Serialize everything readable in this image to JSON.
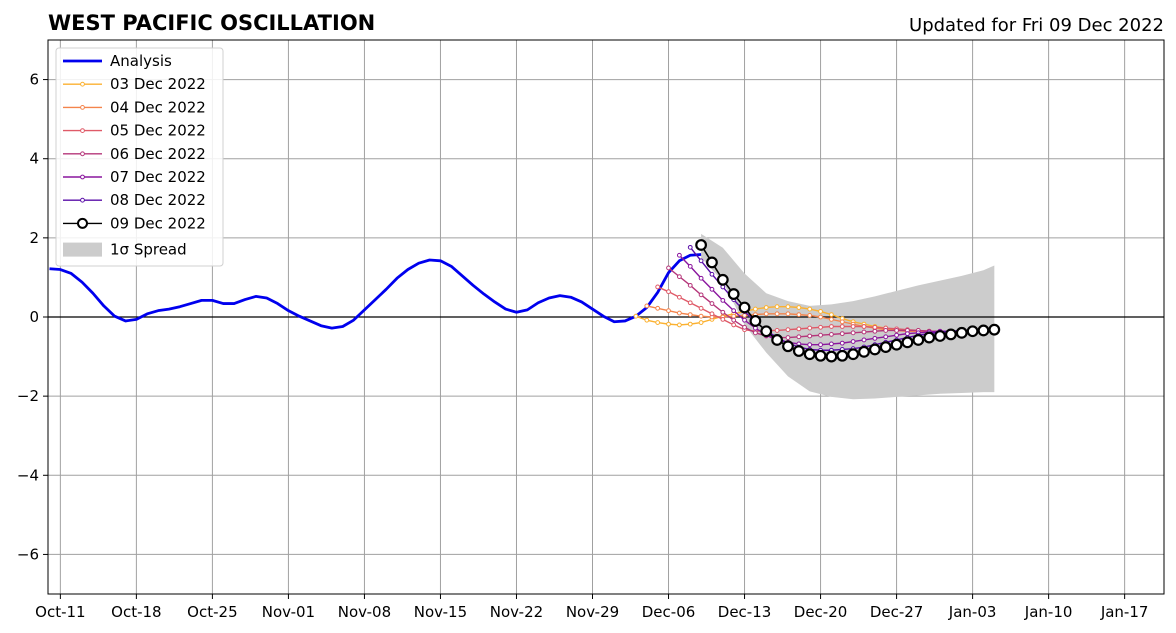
{
  "chart_data": {
    "type": "line",
    "title": "WEST PACIFIC OSCILLATION",
    "subtitle": "Updated for Fri 09 Dec 2022",
    "xlabel": "",
    "ylabel": "",
    "x_ticks": [
      "Oct-11",
      "Oct-18",
      "Oct-25",
      "Nov-01",
      "Nov-08",
      "Nov-15",
      "Nov-22",
      "Nov-29",
      "Dec-06",
      "Dec-13",
      "Dec-20",
      "Dec-27",
      "Jan-03",
      "Jan-10",
      "Jan-17"
    ],
    "y_ticks": [
      "6",
      "4",
      "2",
      "0",
      "−2",
      "−4",
      "−6"
    ],
    "ylim": [
      -7,
      7
    ],
    "grid": true,
    "legend_position": "top-left",
    "series": [
      {
        "name": "Analysis",
        "color": "#0000ee",
        "values": [
          [
            0,
            1.22
          ],
          [
            1,
            1.2
          ],
          [
            2,
            1.1
          ],
          [
            3,
            0.88
          ],
          [
            4,
            0.6
          ],
          [
            5,
            0.28
          ],
          [
            6,
            0.02
          ],
          [
            7,
            -0.1
          ],
          [
            8,
            -0.06
          ],
          [
            9,
            0.08
          ],
          [
            10,
            0.16
          ],
          [
            11,
            0.2
          ],
          [
            12,
            0.26
          ],
          [
            13,
            0.34
          ],
          [
            14,
            0.42
          ],
          [
            15,
            0.42
          ],
          [
            16,
            0.34
          ],
          [
            17,
            0.34
          ],
          [
            18,
            0.44
          ],
          [
            19,
            0.52
          ],
          [
            20,
            0.48
          ],
          [
            21,
            0.34
          ],
          [
            22,
            0.16
          ],
          [
            23,
            0.02
          ],
          [
            24,
            -0.1
          ],
          [
            25,
            -0.22
          ],
          [
            26,
            -0.28
          ],
          [
            27,
            -0.24
          ],
          [
            28,
            -0.08
          ],
          [
            29,
            0.18
          ],
          [
            30,
            0.44
          ],
          [
            31,
            0.7
          ],
          [
            32,
            0.98
          ],
          [
            33,
            1.2
          ],
          [
            34,
            1.36
          ],
          [
            35,
            1.44
          ],
          [
            36,
            1.42
          ],
          [
            37,
            1.28
          ],
          [
            38,
            1.04
          ],
          [
            39,
            0.8
          ],
          [
            40,
            0.58
          ],
          [
            41,
            0.38
          ],
          [
            42,
            0.2
          ],
          [
            43,
            0.12
          ],
          [
            44,
            0.18
          ],
          [
            45,
            0.36
          ],
          [
            46,
            0.48
          ],
          [
            47,
            0.54
          ],
          [
            48,
            0.5
          ],
          [
            49,
            0.38
          ],
          [
            50,
            0.2
          ],
          [
            51,
            0.02
          ],
          [
            52,
            -0.12
          ],
          [
            53,
            -0.1
          ],
          [
            54,
            0.02
          ],
          [
            55,
            0.24
          ],
          [
            56,
            0.62
          ],
          [
            57,
            1.12
          ],
          [
            58,
            1.42
          ],
          [
            59,
            1.56
          ],
          [
            60,
            1.58
          ]
        ]
      },
      {
        "name": "03 Dec 2022",
        "color": "#fbb130",
        "values": [
          [
            54,
            0.02
          ],
          [
            55,
            -0.08
          ],
          [
            56,
            -0.14
          ],
          [
            57,
            -0.18
          ],
          [
            58,
            -0.2
          ],
          [
            59,
            -0.18
          ],
          [
            60,
            -0.14
          ],
          [
            61,
            -0.06
          ],
          [
            62,
            0.02
          ],
          [
            63,
            0.08
          ],
          [
            64,
            0.14
          ],
          [
            65,
            0.2
          ],
          [
            66,
            0.24
          ],
          [
            67,
            0.26
          ],
          [
            68,
            0.26
          ],
          [
            69,
            0.24
          ],
          [
            70,
            0.2
          ],
          [
            71,
            0.14
          ],
          [
            72,
            0.06
          ],
          [
            73,
            -0.04
          ],
          [
            74,
            -0.12
          ],
          [
            75,
            -0.18
          ],
          [
            76,
            -0.24
          ],
          [
            77,
            -0.28
          ],
          [
            78,
            -0.32
          ],
          [
            79,
            -0.34
          ],
          [
            80,
            -0.36
          ],
          [
            81,
            -0.36
          ]
        ]
      },
      {
        "name": "04 Dec 2022",
        "color": "#f4844c",
        "values": [
          [
            55,
            0.28
          ],
          [
            56,
            0.22
          ],
          [
            57,
            0.16
          ],
          [
            58,
            0.1
          ],
          [
            59,
            0.06
          ],
          [
            60,
            0.02
          ],
          [
            61,
            0
          ],
          [
            62,
            0
          ],
          [
            63,
            0.02
          ],
          [
            64,
            0.04
          ],
          [
            65,
            0.06
          ],
          [
            66,
            0.08
          ],
          [
            67,
            0.08
          ],
          [
            68,
            0.08
          ],
          [
            69,
            0.06
          ],
          [
            70,
            0.04
          ],
          [
            71,
            0
          ],
          [
            72,
            -0.06
          ],
          [
            73,
            -0.12
          ],
          [
            74,
            -0.18
          ],
          [
            75,
            -0.24
          ],
          [
            76,
            -0.28
          ],
          [
            77,
            -0.32
          ],
          [
            78,
            -0.34
          ],
          [
            79,
            -0.36
          ],
          [
            80,
            -0.36
          ],
          [
            81,
            -0.36
          ],
          [
            82,
            -0.36
          ]
        ]
      },
      {
        "name": "05 Dec 2022",
        "color": "#df5a68",
        "values": [
          [
            56,
            0.76
          ],
          [
            57,
            0.64
          ],
          [
            58,
            0.5
          ],
          [
            59,
            0.36
          ],
          [
            60,
            0.22
          ],
          [
            61,
            0.08
          ],
          [
            62,
            -0.06
          ],
          [
            63,
            -0.2
          ],
          [
            64,
            -0.32
          ],
          [
            65,
            -0.36
          ],
          [
            66,
            -0.34
          ],
          [
            67,
            -0.34
          ],
          [
            68,
            -0.32
          ],
          [
            69,
            -0.3
          ],
          [
            70,
            -0.28
          ],
          [
            71,
            -0.26
          ],
          [
            72,
            -0.24
          ],
          [
            73,
            -0.24
          ],
          [
            74,
            -0.24
          ],
          [
            75,
            -0.24
          ],
          [
            76,
            -0.26
          ],
          [
            77,
            -0.28
          ],
          [
            78,
            -0.3
          ],
          [
            79,
            -0.32
          ],
          [
            80,
            -0.34
          ],
          [
            81,
            -0.36
          ],
          [
            82,
            -0.38
          ],
          [
            83,
            -0.38
          ]
        ]
      },
      {
        "name": "06 Dec 2022",
        "color": "#b5367a",
        "values": [
          [
            57,
            1.24
          ],
          [
            58,
            1.02
          ],
          [
            59,
            0.8
          ],
          [
            60,
            0.56
          ],
          [
            61,
            0.34
          ],
          [
            62,
            0.12
          ],
          [
            63,
            -0.08
          ],
          [
            64,
            -0.26
          ],
          [
            65,
            -0.4
          ],
          [
            66,
            -0.48
          ],
          [
            67,
            -0.52
          ],
          [
            68,
            -0.52
          ],
          [
            69,
            -0.5
          ],
          [
            70,
            -0.48
          ],
          [
            71,
            -0.46
          ],
          [
            72,
            -0.44
          ],
          [
            73,
            -0.42
          ],
          [
            74,
            -0.4
          ],
          [
            75,
            -0.38
          ],
          [
            76,
            -0.36
          ],
          [
            77,
            -0.34
          ],
          [
            78,
            -0.34
          ],
          [
            79,
            -0.34
          ],
          [
            80,
            -0.34
          ],
          [
            81,
            -0.36
          ],
          [
            82,
            -0.36
          ],
          [
            83,
            -0.38
          ],
          [
            84,
            -0.38
          ]
        ]
      },
      {
        "name": "07 Dec 2022",
        "color": "#8a169e",
        "values": [
          [
            58,
            1.56
          ],
          [
            59,
            1.28
          ],
          [
            60,
            0.98
          ],
          [
            61,
            0.7
          ],
          [
            62,
            0.42
          ],
          [
            63,
            0.16
          ],
          [
            64,
            -0.08
          ],
          [
            65,
            -0.28
          ],
          [
            66,
            -0.46
          ],
          [
            67,
            -0.58
          ],
          [
            68,
            -0.64
          ],
          [
            69,
            -0.68
          ],
          [
            70,
            -0.7
          ],
          [
            71,
            -0.7
          ],
          [
            72,
            -0.68
          ],
          [
            73,
            -0.66
          ],
          [
            74,
            -0.62
          ],
          [
            75,
            -0.58
          ],
          [
            76,
            -0.54
          ],
          [
            77,
            -0.5
          ],
          [
            78,
            -0.46
          ],
          [
            79,
            -0.42
          ],
          [
            80,
            -0.4
          ],
          [
            81,
            -0.38
          ],
          [
            82,
            -0.36
          ],
          [
            83,
            -0.36
          ],
          [
            84,
            -0.36
          ],
          [
            85,
            -0.36
          ]
        ]
      },
      {
        "name": "08 Dec 2022",
        "color": "#5a0ea8",
        "values": [
          [
            59,
            1.76
          ],
          [
            60,
            1.42
          ],
          [
            61,
            1.08
          ],
          [
            62,
            0.76
          ],
          [
            63,
            0.44
          ],
          [
            64,
            0.14
          ],
          [
            65,
            -0.12
          ],
          [
            66,
            -0.34
          ],
          [
            67,
            -0.52
          ],
          [
            68,
            -0.66
          ],
          [
            69,
            -0.76
          ],
          [
            70,
            -0.82
          ],
          [
            71,
            -0.84
          ],
          [
            72,
            -0.84
          ],
          [
            73,
            -0.82
          ],
          [
            74,
            -0.8
          ],
          [
            75,
            -0.76
          ],
          [
            76,
            -0.7
          ],
          [
            77,
            -0.64
          ],
          [
            78,
            -0.58
          ],
          [
            79,
            -0.52
          ],
          [
            80,
            -0.46
          ],
          [
            81,
            -0.42
          ],
          [
            82,
            -0.38
          ],
          [
            83,
            -0.36
          ],
          [
            84,
            -0.34
          ],
          [
            85,
            -0.34
          ],
          [
            86,
            -0.34
          ]
        ]
      },
      {
        "name": "09 Dec 2022",
        "color": "#000000",
        "values": [
          [
            60,
            1.82
          ],
          [
            61,
            1.38
          ],
          [
            62,
            0.94
          ],
          [
            63,
            0.58
          ],
          [
            64,
            0.24
          ],
          [
            65,
            -0.1
          ],
          [
            66,
            -0.36
          ],
          [
            67,
            -0.58
          ],
          [
            68,
            -0.74
          ],
          [
            69,
            -0.86
          ],
          [
            70,
            -0.94
          ],
          [
            71,
            -0.98
          ],
          [
            72,
            -1
          ],
          [
            73,
            -0.98
          ],
          [
            74,
            -0.94
          ],
          [
            75,
            -0.88
          ],
          [
            76,
            -0.82
          ],
          [
            77,
            -0.76
          ],
          [
            78,
            -0.7
          ],
          [
            79,
            -0.64
          ],
          [
            80,
            -0.58
          ],
          [
            81,
            -0.52
          ],
          [
            82,
            -0.48
          ],
          [
            83,
            -0.44
          ],
          [
            84,
            -0.4
          ],
          [
            85,
            -0.36
          ],
          [
            86,
            -0.34
          ],
          [
            87,
            -0.32
          ]
        ]
      }
    ],
    "spread": {
      "name": "1σ Spread",
      "color": "#cccccc",
      "upper": [
        [
          60,
          2.1
        ],
        [
          62,
          1.75
        ],
        [
          64,
          1.1
        ],
        [
          66,
          0.6
        ],
        [
          68,
          0.4
        ],
        [
          70,
          0.28
        ],
        [
          72,
          0.32
        ],
        [
          74,
          0.4
        ],
        [
          76,
          0.52
        ],
        [
          78,
          0.66
        ],
        [
          80,
          0.8
        ],
        [
          82,
          0.92
        ],
        [
          84,
          1.04
        ],
        [
          86,
          1.18
        ],
        [
          87,
          1.3
        ]
      ],
      "lower": [
        [
          60,
          1.5
        ],
        [
          62,
          0.9
        ],
        [
          64,
          -0.2
        ],
        [
          66,
          -0.9
        ],
        [
          68,
          -1.5
        ],
        [
          70,
          -1.88
        ],
        [
          72,
          -2.02
        ],
        [
          74,
          -2.08
        ],
        [
          76,
          -2.06
        ],
        [
          78,
          -2.02
        ],
        [
          80,
          -1.98
        ],
        [
          82,
          -1.94
        ],
        [
          84,
          -1.92
        ],
        [
          86,
          -1.9
        ],
        [
          87,
          -1.9
        ]
      ]
    }
  }
}
